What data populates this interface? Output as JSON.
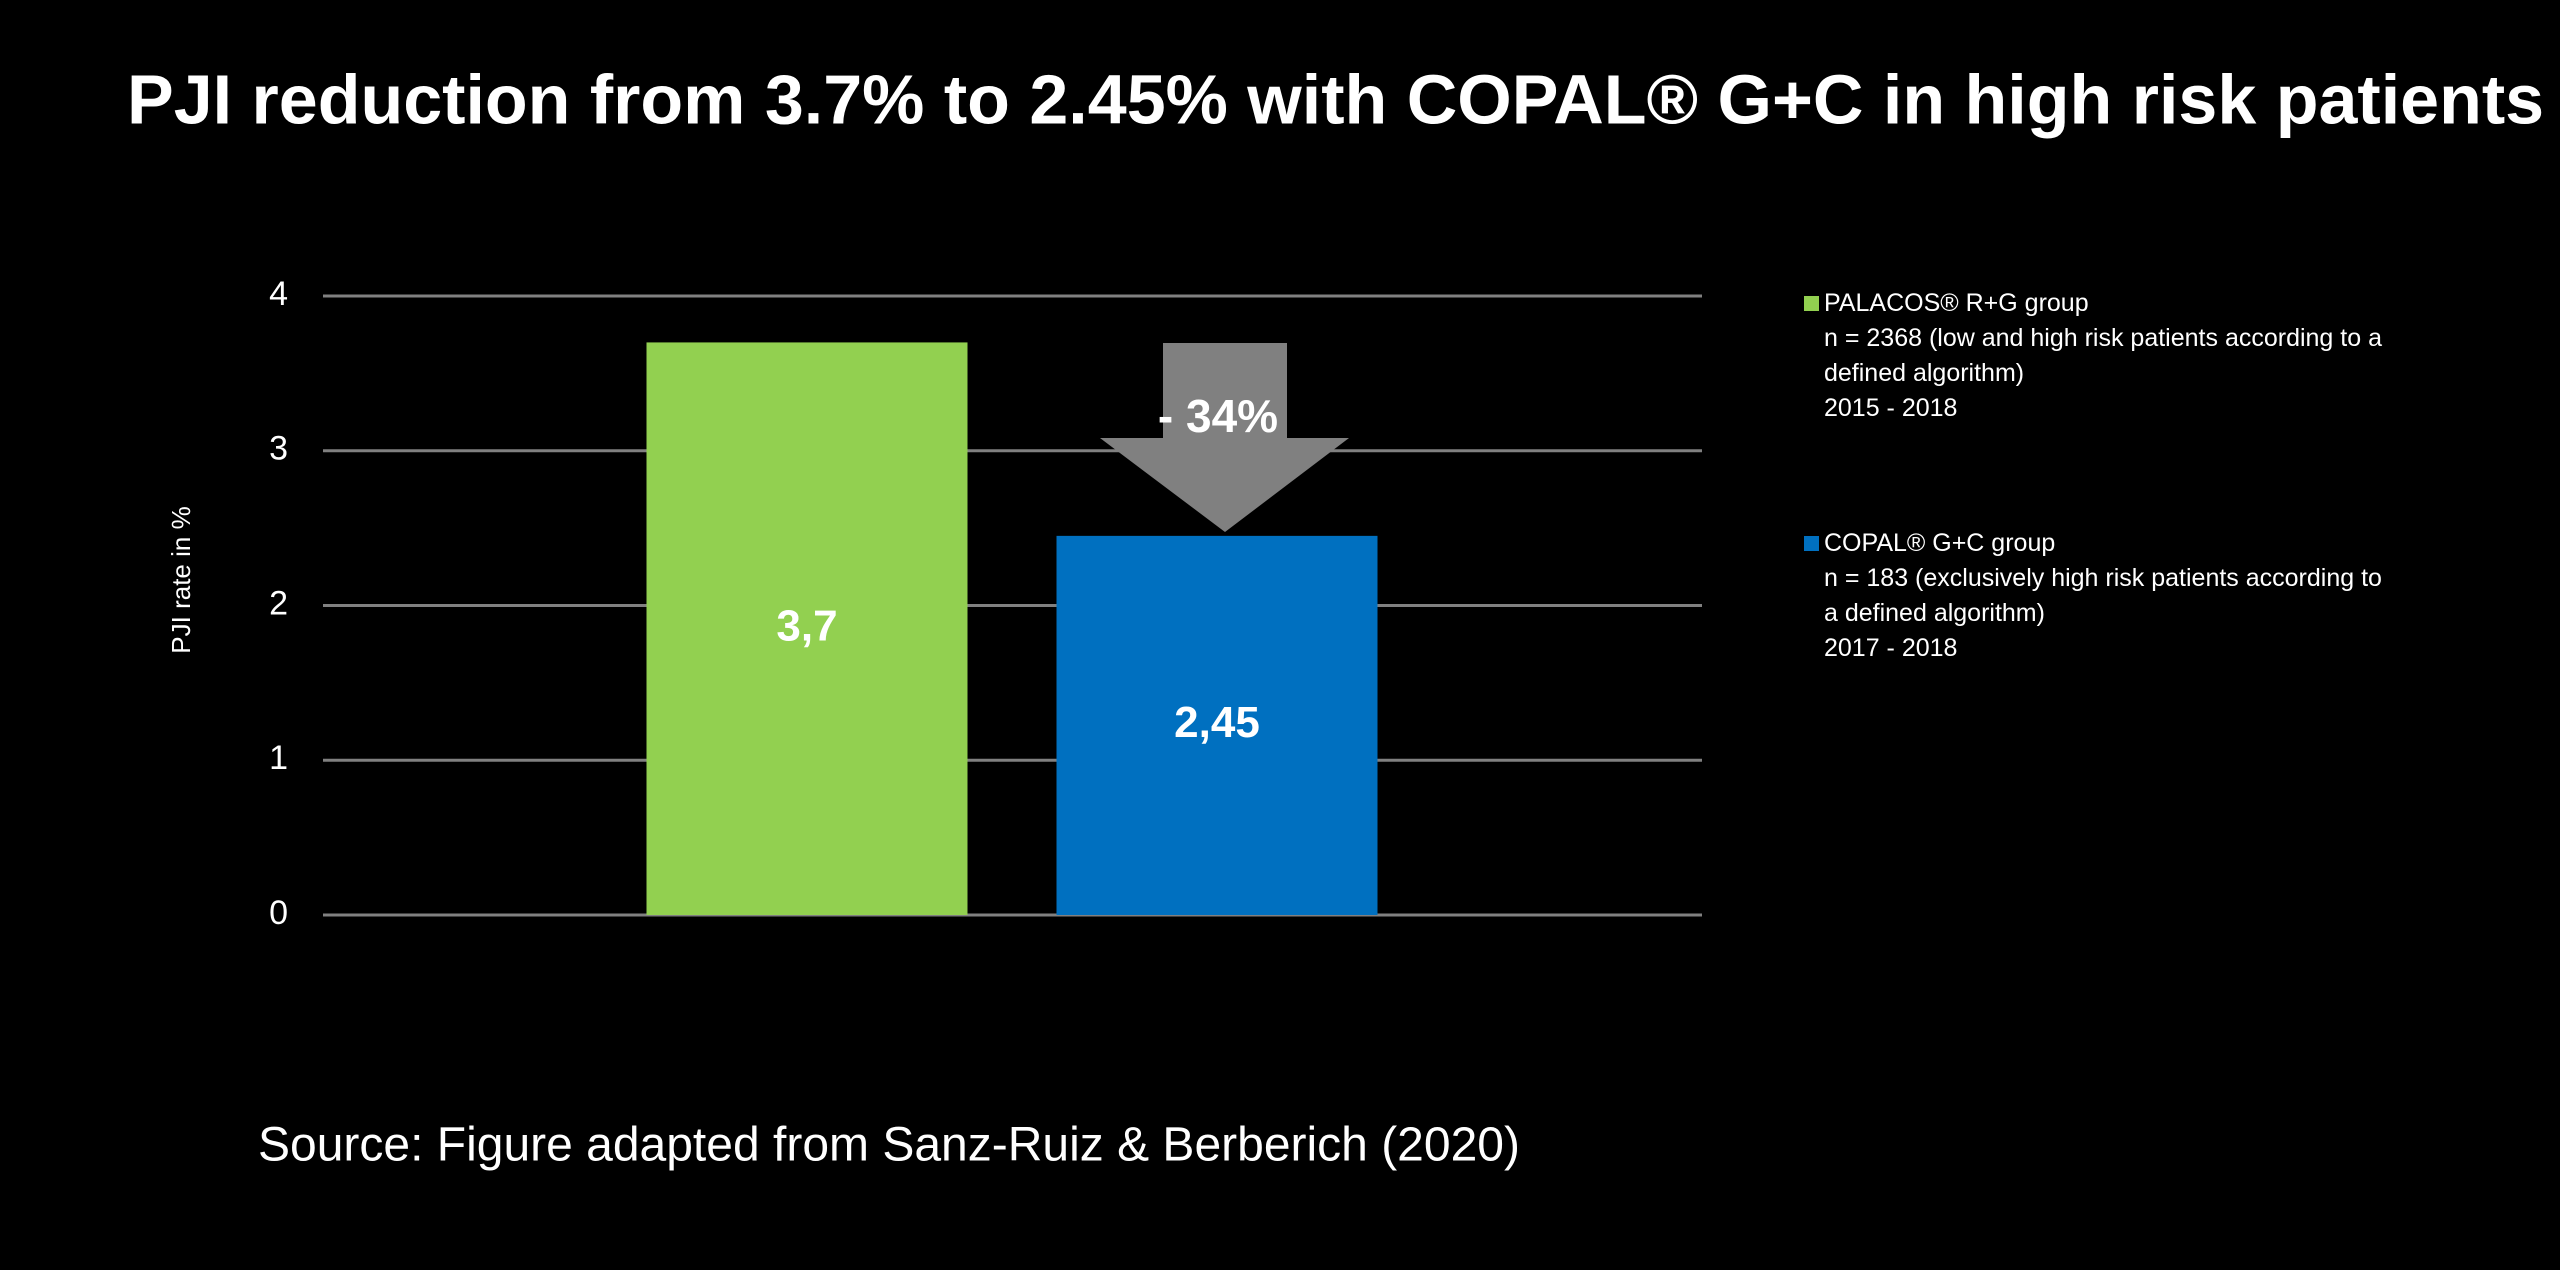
{
  "chart_data": {
    "type": "bar",
    "title": "PJI reduction from 3.7% to 2.45% with COPAL® G+C in high risk patients",
    "y_label": "PJI rate in %",
    "categories": [
      null,
      null
    ],
    "series": [
      {
        "name": "PALACOS® R+G group",
        "color": "#92d050",
        "values": [
          3.7,
          null
        ],
        "value_labels": [
          "3,7",
          null
        ],
        "description": [
          "n = 2368 (low and high risk patients according to a defined algorithm)",
          "2015 - 2018"
        ]
      },
      {
        "name": "COPAL® G+C group",
        "color": "#0070c0",
        "values": [
          null,
          2.45
        ],
        "value_labels": [
          null,
          "2,45"
        ],
        "description": [
          "n = 183 (exclusively high risk patients according to a defined algorithm)",
          "2017 - 2018"
        ]
      }
    ],
    "annotation": "- 34%",
    "ylim": [
      0,
      4
    ],
    "yticks": [
      0,
      1,
      2,
      3,
      4
    ],
    "grid": true,
    "source": "Source: Figure adapted from Sanz-Ruiz & Berberich (2020)"
  }
}
